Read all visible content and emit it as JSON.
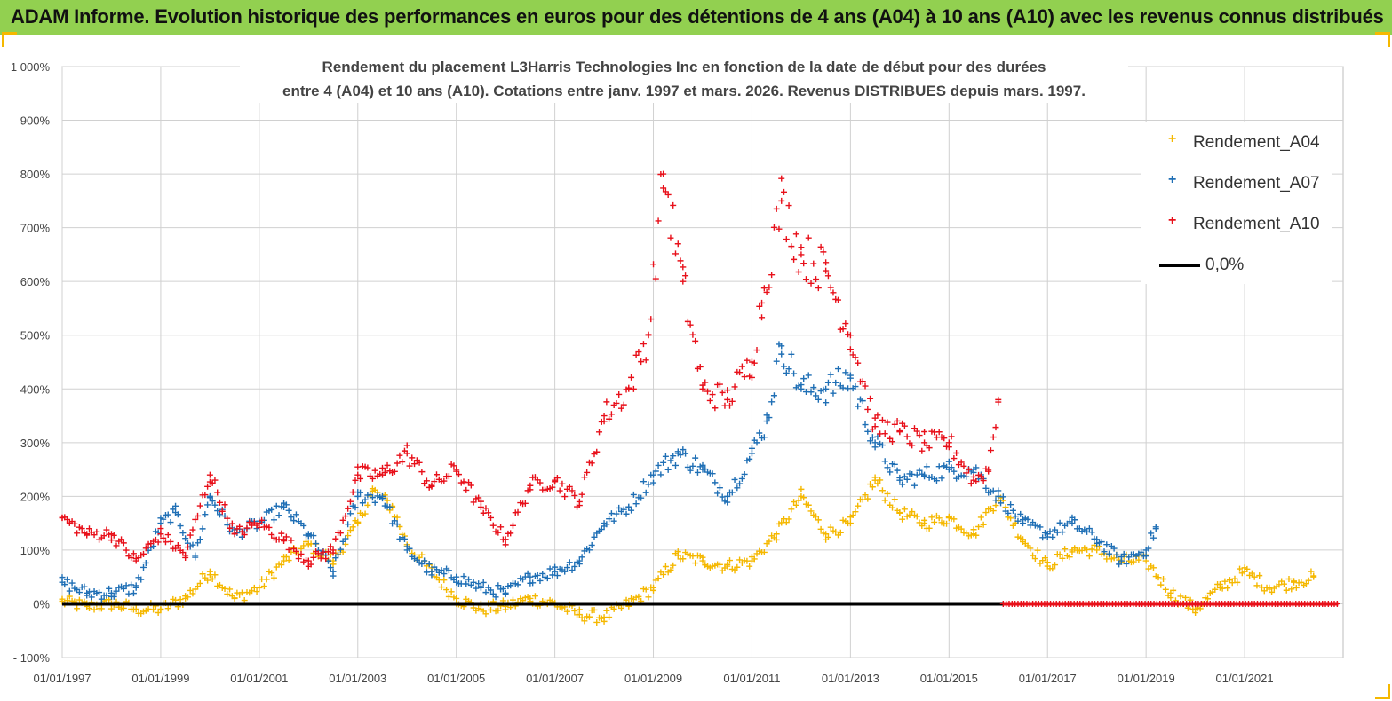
{
  "header": {
    "title": "ADAM Informe. Evolution historique des performances en euros pour des détentions de 4 ans (A04) à 10 ans (A10) avec les revenus connus distribués"
  },
  "chart_data": {
    "type": "scatter",
    "title_lines": [
      "Rendement du placement L3Harris Technologies Inc en fonction de la date de début pour des durées",
      "entre 4 (A04) et 10 ans (A10). Cotations entre janv. 1997 et mars. 2026. Revenus DISTRIBUES depuis mars. 1997."
    ],
    "y_unit": "%",
    "ylim": [
      -100,
      1000
    ],
    "y_ticks": [
      -100,
      0,
      100,
      200,
      300,
      400,
      500,
      600,
      700,
      800,
      900,
      1000
    ],
    "y_tick_labels": [
      "- 100%",
      "0%",
      "100%",
      "200%",
      "300%",
      "400%",
      "500%",
      "600%",
      "700%",
      "800%",
      "900%",
      "1 000%"
    ],
    "xlim": [
      1997.0,
      2023.0
    ],
    "x_ticks": [
      1997,
      1999,
      2001,
      2003,
      2005,
      2007,
      2009,
      2011,
      2013,
      2015,
      2017,
      2019,
      2021
    ],
    "x_tick_labels": [
      "01/01/1997",
      "01/01/1999",
      "01/01/2001",
      "01/01/2003",
      "01/01/2005",
      "01/01/2007",
      "01/01/2009",
      "01/01/2011",
      "01/01/2013",
      "01/01/2015",
      "01/01/2017",
      "01/01/2019",
      "01/01/2021"
    ],
    "grid": true,
    "legend_position": "top-right",
    "series": [
      {
        "name": "Rendement_A04",
        "color": "#f5b800",
        "marker": "+",
        "x": [
          1997.0,
          1997.5,
          1998.0,
          1998.5,
          1999.0,
          1999.5,
          2000.0,
          2000.5,
          2001.0,
          2001.5,
          2002.0,
          2002.5,
          2003.0,
          2003.3,
          2003.7,
          2004.0,
          2004.5,
          2005.0,
          2005.5,
          2006.0,
          2006.5,
          2007.0,
          2007.5,
          2008.0,
          2008.5,
          2009.0,
          2009.5,
          2010.0,
          2010.5,
          2011.0,
          2011.5,
          2012.0,
          2012.5,
          2013.0,
          2013.5,
          2014.0,
          2014.5,
          2015.0,
          2015.5,
          2016.0,
          2016.5,
          2017.0,
          2017.5,
          2018.0,
          2018.5,
          2019.0,
          2019.5,
          2020.0,
          2020.5,
          2021.0,
          2021.5,
          2022.0,
          2022.4
        ],
        "y": [
          5,
          -5,
          0,
          -10,
          -10,
          10,
          60,
          10,
          30,
          80,
          110,
          80,
          150,
          210,
          180,
          110,
          60,
          10,
          -10,
          -5,
          10,
          0,
          -20,
          -25,
          0,
          30,
          90,
          80,
          70,
          80,
          130,
          200,
          130,
          150,
          230,
          170,
          150,
          160,
          130,
          200,
          120,
          70,
          100,
          100,
          80,
          80,
          20,
          -10,
          30,
          60,
          30,
          40,
          50
        ]
      },
      {
        "name": "Rendement_A07",
        "color": "#1f6fb5",
        "marker": "+",
        "x": [
          1997.0,
          1997.5,
          1998.0,
          1998.5,
          1999.0,
          1999.3,
          1999.7,
          2000.0,
          2000.5,
          2001.0,
          2001.5,
          2002.0,
          2002.5,
          2003.0,
          2003.5,
          2004.0,
          2004.5,
          2005.0,
          2005.5,
          2006.0,
          2006.5,
          2007.0,
          2007.5,
          2008.0,
          2008.5,
          2009.0,
          2009.5,
          2010.0,
          2010.5,
          2011.0,
          2011.3,
          2011.6,
          2012.0,
          2012.5,
          2013.0,
          2013.5,
          2014.0,
          2014.5,
          2015.0,
          2015.5,
          2016.0,
          2016.5,
          2017.0,
          2017.5,
          2018.0,
          2018.5,
          2019.0,
          2019.2
        ],
        "y": [
          40,
          20,
          20,
          30,
          150,
          170,
          90,
          200,
          130,
          150,
          180,
          130,
          60,
          200,
          200,
          100,
          60,
          50,
          30,
          20,
          50,
          60,
          80,
          150,
          180,
          240,
          280,
          250,
          200,
          280,
          340,
          480,
          400,
          400,
          420,
          300,
          230,
          240,
          250,
          250,
          200,
          150,
          130,
          150,
          120,
          80,
          100,
          140
        ]
      },
      {
        "name": "Rendement_A10",
        "color": "#e8101a",
        "marker": "+",
        "x": [
          1997.0,
          1997.5,
          1998.0,
          1998.5,
          1999.0,
          1999.5,
          2000.0,
          2000.5,
          2001.0,
          2001.5,
          2002.0,
          2002.5,
          2003.0,
          2003.5,
          2004.0,
          2004.5,
          2005.0,
          2005.5,
          2006.0,
          2006.5,
          2007.0,
          2007.5,
          2008.0,
          2008.5,
          2008.9,
          2009.2,
          2009.6,
          2010.0,
          2010.5,
          2011.0,
          2011.2,
          2011.6,
          2012.0,
          2012.5,
          2013.0,
          2013.5,
          2014.0,
          2014.5,
          2015.0,
          2015.5,
          2015.8,
          2016.0
        ],
        "y": [
          160,
          130,
          130,
          80,
          130,
          90,
          240,
          130,
          150,
          120,
          80,
          100,
          240,
          240,
          280,
          220,
          250,
          180,
          120,
          220,
          230,
          190,
          350,
          400,
          500,
          800,
          600,
          400,
          380,
          450,
          560,
          750,
          650,
          620,
          500,
          330,
          320,
          300,
          300,
          230,
          250,
          380
        ]
      }
    ],
    "zero_series": {
      "name": "0,0%",
      "color": "#000000",
      "value": 0,
      "x": [
        1997.0,
        2016.1
      ]
    },
    "zero_red_marks": {
      "color": "#e8101a",
      "value": 0,
      "x": [
        2016.1,
        2022.9
      ]
    }
  }
}
